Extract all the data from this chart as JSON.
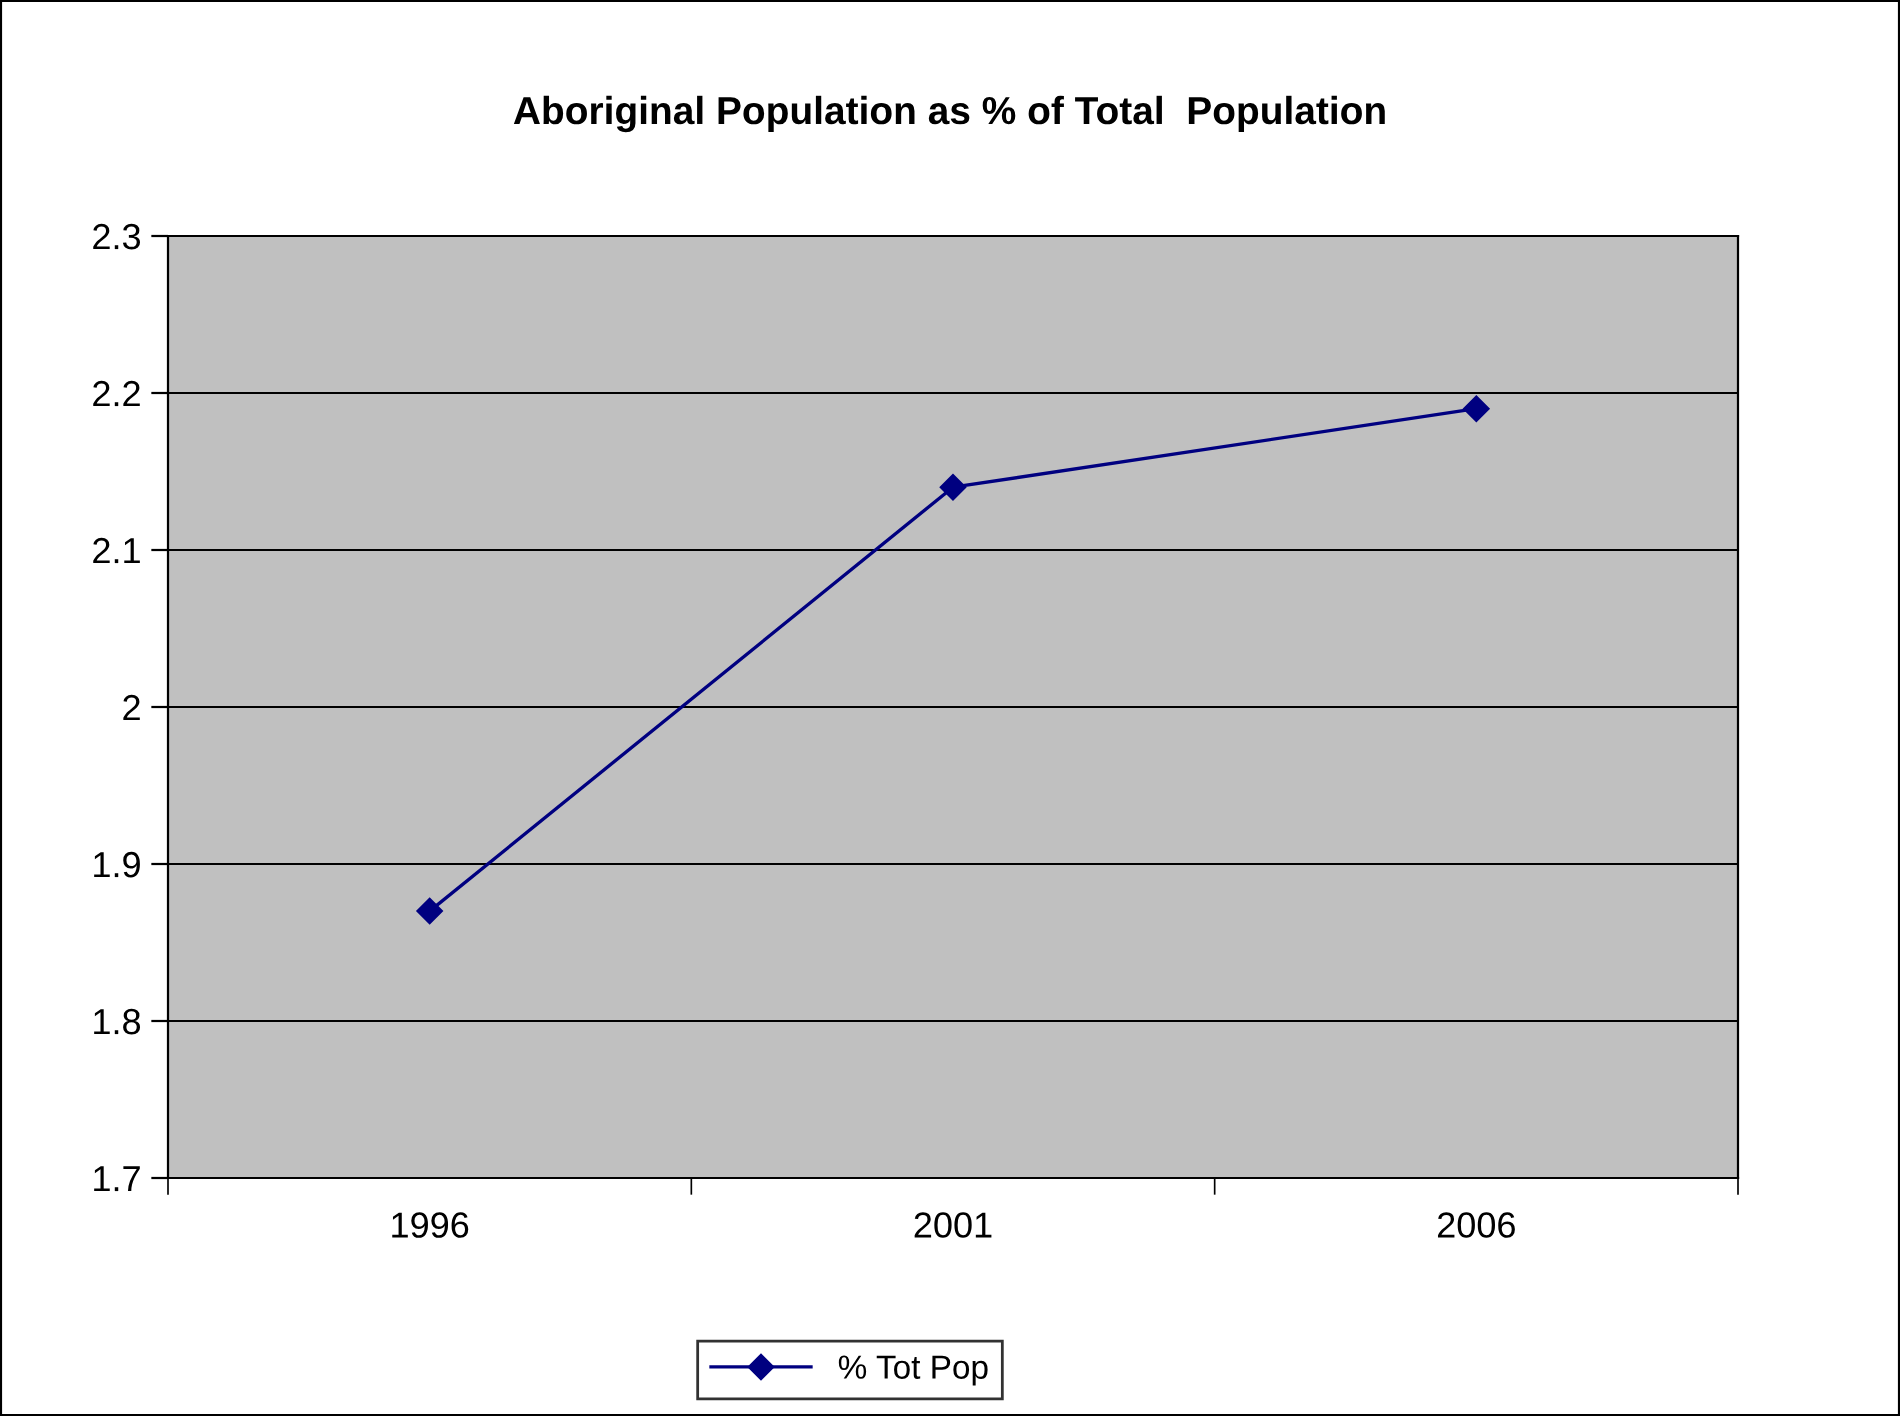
{
  "chart_data": {
    "type": "line",
    "title": "Aboriginal Population as % of Total  Population",
    "categories": [
      "1996",
      "2001",
      "2006"
    ],
    "series": [
      {
        "name": "% Tot Pop",
        "color": "#000080",
        "values": [
          1.87,
          2.14,
          2.19
        ]
      }
    ],
    "ylim": [
      1.7,
      2.3
    ],
    "yticks": [
      1.7,
      1.8,
      1.9,
      2,
      2.1,
      2.2,
      2.3
    ],
    "grid": "y",
    "legend": "bottom",
    "marker": "diamond",
    "line_style": "solid"
  }
}
